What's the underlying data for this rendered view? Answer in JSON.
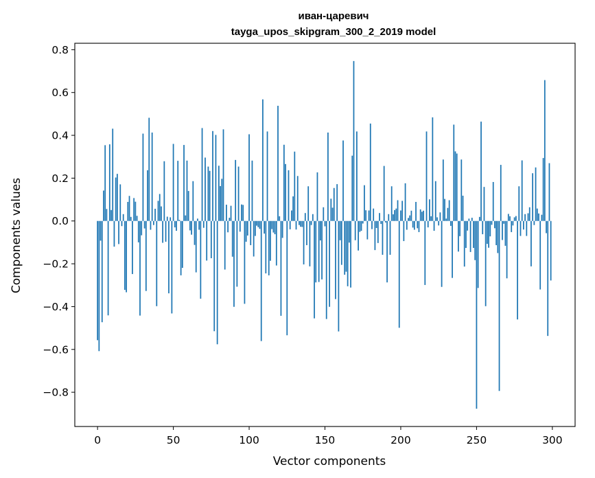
{
  "chart_data": {
    "type": "bar",
    "title_line1": "иван-царевич",
    "title_line2": "tayga_upos_skipgram_300_2_2019 model",
    "xlabel": "Vector components",
    "ylabel": "Components values",
    "xlim": [
      -15,
      315
    ],
    "ylim": [
      -0.96,
      0.83
    ],
    "x_ticks": [
      0,
      50,
      100,
      150,
      200,
      250,
      300
    ],
    "x_tick_labels": [
      "0",
      "50",
      "100",
      "150",
      "200",
      "250",
      "300"
    ],
    "y_ticks": [
      -0.8,
      -0.6,
      -0.4,
      -0.2,
      0.0,
      0.2,
      0.4,
      0.6,
      0.8
    ],
    "y_tick_labels": [
      "−0.8",
      "−0.6",
      "−0.4",
      "−0.2",
      "0.0",
      "0.2",
      "0.4",
      "0.6",
      "0.8"
    ],
    "bar_color": "#1f77b4",
    "grid": false,
    "values": [
      -0.557,
      -0.608,
      -0.092,
      -0.473,
      0.142,
      0.354,
      0.056,
      -0.441,
      0.358,
      0.051,
      0.431,
      -0.12,
      0.203,
      0.22,
      -0.108,
      0.171,
      -0.024,
      0.032,
      -0.322,
      -0.333,
      0.089,
      0.117,
      0.019,
      -0.248,
      0.107,
      0.09,
      0.024,
      -0.1,
      -0.442,
      -0.067,
      0.408,
      -0.035,
      -0.327,
      0.237,
      0.482,
      -0.041,
      0.413,
      -0.019,
      0.057,
      -0.398,
      0.094,
      0.126,
      0.068,
      -0.102,
      0.279,
      -0.097,
      0.02,
      -0.338,
      0.017,
      -0.432,
      0.36,
      -0.03,
      -0.046,
      0.281,
      0.005,
      -0.254,
      -0.219,
      0.355,
      0.026,
      0.282,
      0.14,
      -0.044,
      -0.064,
      0.186,
      -0.112,
      -0.24,
      0.011,
      -0.041,
      -0.363,
      0.434,
      -0.032,
      0.296,
      -0.185,
      0.254,
      0.234,
      -0.174,
      0.42,
      -0.515,
      0.402,
      -0.576,
      0.258,
      0.163,
      0.197,
      0.428,
      -0.227,
      0.076,
      -0.053,
      0.015,
      0.071,
      -0.167,
      -0.401,
      0.285,
      -0.307,
      0.254,
      -0.05,
      0.077,
      0.075,
      -0.387,
      -0.097,
      -0.068,
      0.405,
      -0.113,
      0.282,
      -0.166,
      -0.07,
      -0.022,
      -0.029,
      -0.037,
      -0.561,
      0.568,
      -0.059,
      -0.245,
      0.418,
      -0.254,
      -0.186,
      -0.038,
      -0.054,
      -0.062,
      -0.208,
      0.538,
      0.022,
      -0.443,
      -0.079,
      0.356,
      0.266,
      -0.534,
      0.237,
      -0.039,
      0.049,
      0.115,
      0.324,
      -0.04,
      0.21,
      -0.019,
      -0.027,
      -0.028,
      -0.203,
      0.037,
      -0.113,
      0.162,
      -0.212,
      -0.019,
      0.032,
      -0.455,
      -0.287,
      0.227,
      -0.285,
      -0.091,
      -0.273,
      0.064,
      -0.025,
      -0.458,
      0.413,
      -0.401,
      0.104,
      0.062,
      0.154,
      -0.365,
      0.172,
      -0.516,
      -0.09,
      -0.205,
      0.376,
      -0.251,
      -0.237,
      -0.305,
      -0.101,
      -0.311,
      0.305,
      0.747,
      -0.09,
      0.418,
      -0.138,
      -0.051,
      -0.046,
      -0.012,
      0.167,
      0.05,
      -0.086,
      0.049,
      0.455,
      -0.038,
      0.058,
      -0.136,
      -0.033,
      -0.103,
      0.037,
      -0.014,
      -0.158,
      0.257,
      -0.007,
      -0.287,
      0.032,
      -0.158,
      0.162,
      0.031,
      0.051,
      0.058,
      0.097,
      -0.499,
      0.049,
      0.094,
      -0.094,
      0.176,
      -0.041,
      0.014,
      0.026,
      0.048,
      -0.031,
      -0.041,
      0.089,
      -0.034,
      -0.052,
      0.054,
      0.043,
      0.048,
      -0.299,
      0.418,
      -0.03,
      0.101,
      0.022,
      0.484,
      -0.046,
      0.186,
      0.017,
      -0.021,
      0.04,
      -0.308,
      0.287,
      0.103,
      0.011,
      0.061,
      0.097,
      -0.023,
      -0.266,
      0.45,
      0.325,
      0.315,
      -0.143,
      -0.071,
      0.287,
      0.118,
      -0.213,
      -0.126,
      -0.045,
      0.011,
      -0.145,
      0.015,
      -0.126,
      -0.183,
      -0.877,
      -0.313,
      0.019,
      0.464,
      -0.062,
      0.159,
      -0.398,
      -0.107,
      -0.125,
      -0.072,
      -0.018,
      0.182,
      -0.034,
      -0.113,
      -0.15,
      -0.794,
      0.262,
      -0.089,
      -0.013,
      -0.116,
      -0.268,
      0.033,
      0.022,
      -0.052,
      -0.021,
      0.017,
      0.023,
      -0.46,
      0.162,
      -0.07,
      0.283,
      -0.04,
      0.032,
      -0.07,
      0.036,
      0.064,
      -0.212,
      0.223,
      -0.019,
      0.25,
      0.058,
      0.035,
      -0.32,
      0.029,
      0.294,
      0.658,
      -0.057,
      -0.537,
      0.27,
      -0.278
    ]
  }
}
